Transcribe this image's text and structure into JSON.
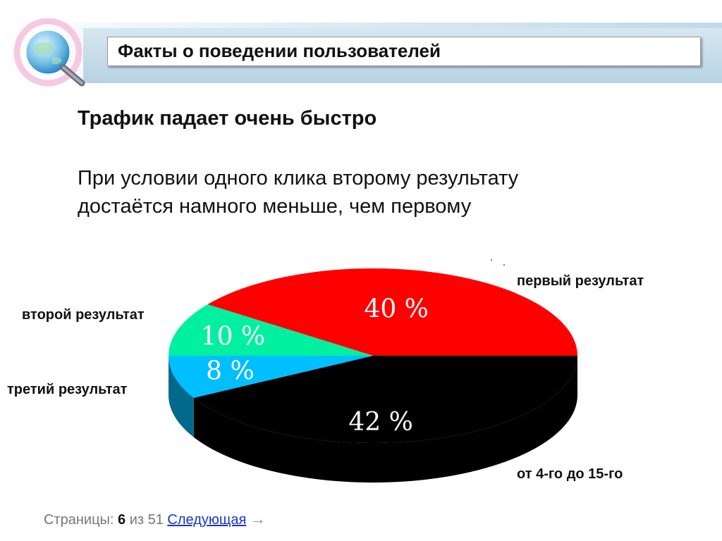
{
  "header": {
    "title": "Факты о поведении пользователей"
  },
  "main": {
    "heading": "Трафик падает очень быстро",
    "paragraph_line1": "При условии одного клика второму результату",
    "paragraph_line2": "достаётся намного меньше, чем первому"
  },
  "chart_data": {
    "type": "pie",
    "style": "3d",
    "slices": [
      {
        "label": "первый результат",
        "value": 40,
        "value_label": "40 %",
        "color": "#ff0000"
      },
      {
        "label": "от 4-го до 15-го",
        "value": 42,
        "value_label": "42 %",
        "color": "#000000"
      },
      {
        "label": "третий результат",
        "value": 8,
        "value_label": "8 %",
        "color": "#00bfff"
      },
      {
        "label": "второй результат",
        "value": 10,
        "value_label": "10 %",
        "color": "#00f0a0"
      }
    ]
  },
  "pager": {
    "prefix": "Страницы:",
    "current": "6",
    "of": "из 51",
    "next_label": "Следующая",
    "arrow": "→"
  }
}
